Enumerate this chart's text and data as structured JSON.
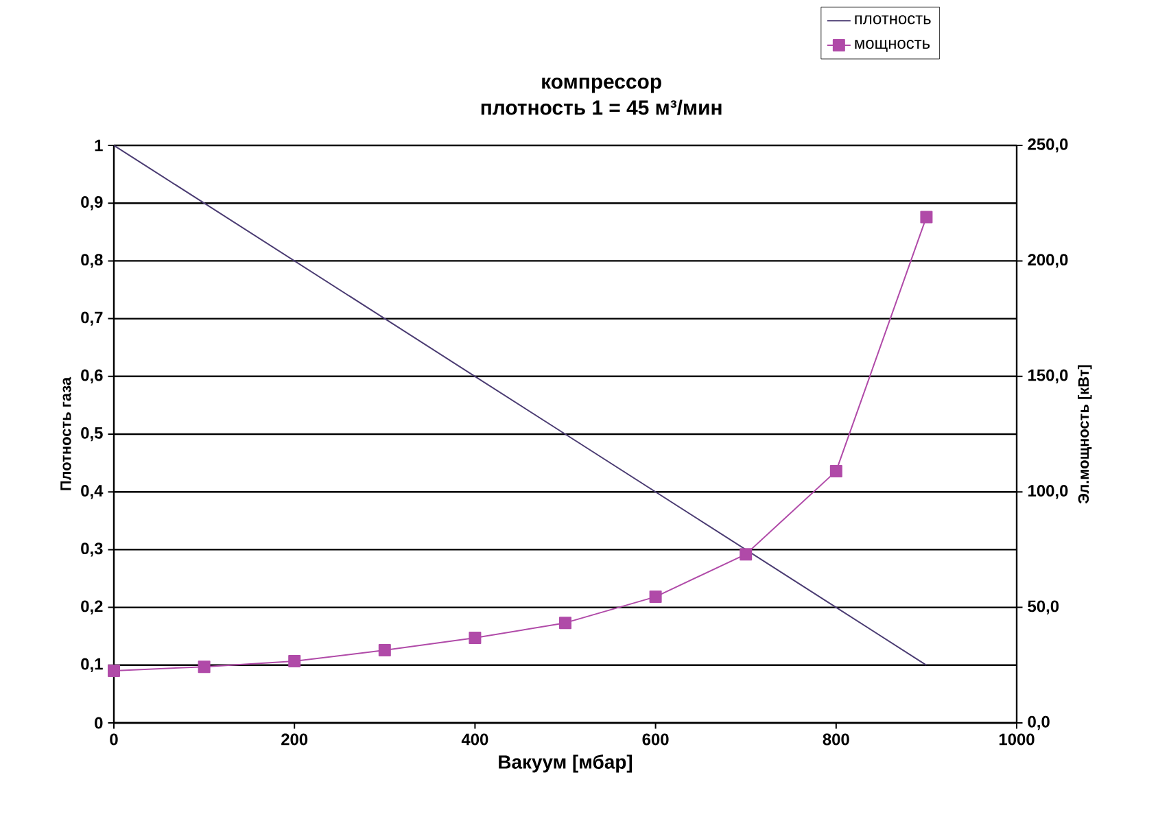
{
  "chart_data": {
    "type": "line",
    "title": "компрессор",
    "subtitle": "плотность 1 = 45 м³/мин",
    "xlabel": "Вакуум    [мбар]",
    "ylabel": "Плотность газа",
    "y2label": "Эл.мощность [кВт]",
    "x": [
      0,
      100,
      200,
      300,
      400,
      500,
      600,
      700,
      800,
      900
    ],
    "series": [
      {
        "name": "плотность",
        "color": "#4a3b72",
        "marker": "none",
        "values": [
          1,
          0.9,
          0.8,
          0.7,
          0.6,
          0.5,
          0.4,
          0.3,
          0.2,
          0.1
        ]
      },
      {
        "name": "мощность",
        "color": "#b04aa8",
        "axis": "y2",
        "values": [
          22.6,
          24.3,
          26.7,
          31.5,
          36.8,
          43.3,
          54.6,
          73,
          109,
          219
        ]
      }
    ],
    "xlim": [
      0,
      1000
    ],
    "xticks": [
      0,
      200,
      400,
      600,
      800,
      1000
    ],
    "ylim": [
      0,
      1
    ],
    "yticks": [
      0,
      {
        "value": 0.1,
        "label": "0,1"
      },
      {
        "value": 0.2,
        "label": "0,2"
      },
      {
        "value": 0.3,
        "label": "0,3"
      },
      {
        "value": 0.4,
        "label": "0,4"
      },
      {
        "value": 0.5,
        "label": "0,5"
      },
      {
        "value": 0.6,
        "label": "0,6"
      },
      {
        "value": 0.7,
        "label": "0,7"
      },
      {
        "value": 0.8,
        "label": "0,8"
      },
      {
        "value": 0.9,
        "label": "0,9"
      },
      1
    ],
    "y2lim": [
      0,
      250
    ],
    "y2ticks": [
      {
        "value": 0,
        "label": "0,0"
      },
      {
        "value": 50,
        "label": "50,0"
      },
      {
        "value": 100,
        "label": "100,0"
      },
      {
        "value": 150,
        "label": "150,0"
      },
      {
        "value": 200,
        "label": "200,0"
      },
      {
        "value": 250,
        "label": "250,0"
      }
    ],
    "grid": "y",
    "legend": "top right",
    "marker": "square",
    "line_style": "solid"
  }
}
